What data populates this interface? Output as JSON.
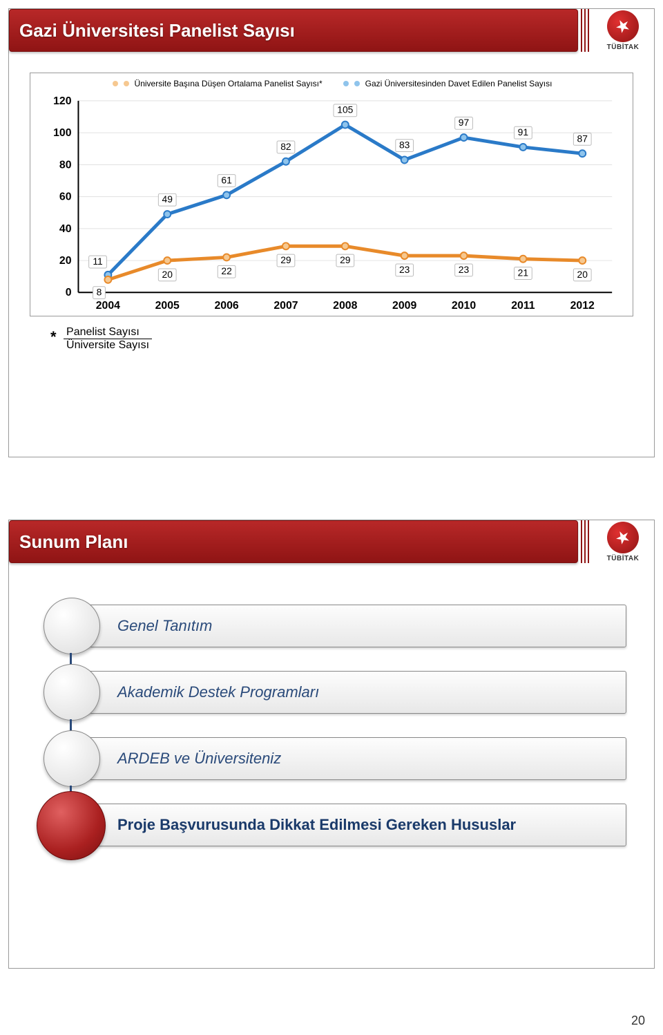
{
  "slide1": {
    "title": "Gazi Üniversitesi Panelist Sayısı",
    "logo_text": "TÜBİTAK",
    "chart": {
      "type": "line",
      "legend": [
        {
          "label": "Üniversite Başına Düşen Ortalama Panelist Sayısı*",
          "color": "#e88a2a"
        },
        {
          "label": "Gazi Üniversitesinden Davet Edilen Panelist Sayısı",
          "color": "#2a7ac8"
        }
      ],
      "x_categories": [
        "2004",
        "2005",
        "2006",
        "2007",
        "2008",
        "2009",
        "2010",
        "2011",
        "2012"
      ],
      "ylim": [
        0,
        120
      ],
      "ytick_step": 20,
      "series": [
        {
          "name": "gazi",
          "color": "#2a7ac8",
          "marker_fill": "#8fc4ec",
          "values": [
            11,
            49,
            61,
            82,
            105,
            83,
            97,
            91,
            87
          ]
        },
        {
          "name": "avg",
          "color": "#e88a2a",
          "marker_fill": "#f6c890",
          "values": [
            8,
            20,
            22,
            29,
            29,
            23,
            23,
            21,
            20
          ]
        }
      ],
      "line_width": 5,
      "marker_radius": 5,
      "gridline_color": "#e0e0e0",
      "background_color": "#ffffff",
      "labelbox_border": "#bbbbbb",
      "title_fontsize": 26,
      "tick_fontsize": 16,
      "value_label_fontsize": 14
    },
    "footnote": {
      "star": "*",
      "numerator": "Panelist Sayısı",
      "denominator": "Üniversite Sayısı"
    }
  },
  "slide2": {
    "title": "Sunum Planı",
    "logo_text": "TÜBİTAK",
    "items": [
      {
        "label": "Genel Tanıtım",
        "active": false
      },
      {
        "label": "Akademik Destek Programları",
        "active": false
      },
      {
        "label": "ARDEB ve Üniversiteniz",
        "active": false
      },
      {
        "label": "Proje Başvurusunda Dikkat Edilmesi Gereken Hususlar",
        "active": true
      }
    ],
    "item_label_color": "#2a4a7a",
    "item_bg": "#eeeeee",
    "circle_gray": "#dcdcdc",
    "circle_red": "#aa2020"
  },
  "page_number": "20"
}
